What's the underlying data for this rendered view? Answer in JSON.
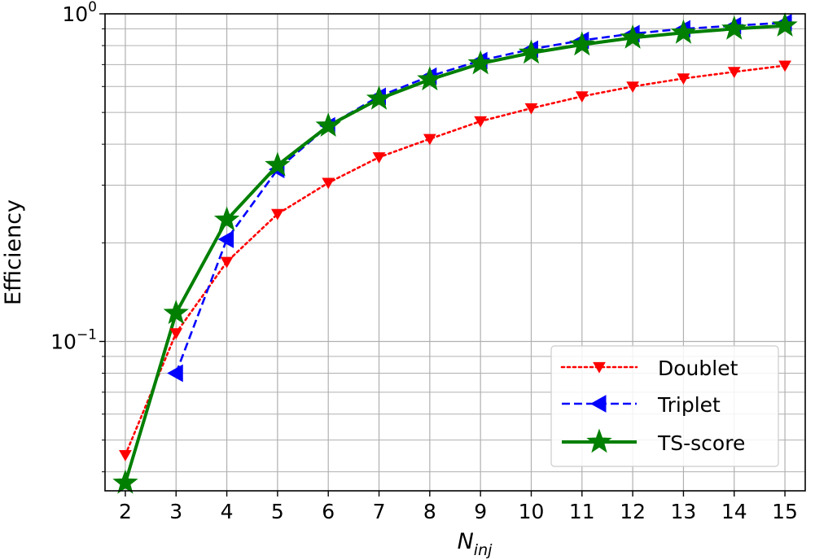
{
  "chart_data": {
    "type": "line",
    "title": "",
    "xlabel": "N",
    "xlabel_sub": "inj",
    "ylabel": "Efficiency",
    "yscale": "log",
    "ylim": [
      0.035,
      1.0
    ],
    "xlim": [
      1.6,
      15.4
    ],
    "grid": true,
    "legend_position": "lower-right",
    "y_major_ticks": [
      {
        "value": 0.1,
        "base": "10",
        "exp": "−1"
      },
      {
        "value": 1.0,
        "base": "10",
        "exp": "0"
      }
    ],
    "x": [
      2,
      3,
      4,
      5,
      6,
      7,
      8,
      9,
      10,
      11,
      12,
      13,
      14,
      15
    ],
    "x_tick_labels": [
      "2",
      "3",
      "4",
      "5",
      "6",
      "7",
      "8",
      "9",
      "10",
      "11",
      "12",
      "13",
      "14",
      "15"
    ],
    "series": [
      {
        "name": "Doublet",
        "color": "#ff0000",
        "line_style": "dotted",
        "marker": "triangle-down",
        "values": [
          0.045,
          0.106,
          0.175,
          0.245,
          0.305,
          0.365,
          0.415,
          0.47,
          0.515,
          0.56,
          0.6,
          0.635,
          0.665,
          0.695
        ]
      },
      {
        "name": "Triplet",
        "color": "#0000ff",
        "line_style": "dashed",
        "marker": "triangle-left",
        "values": [
          null,
          0.08,
          0.205,
          0.335,
          0.455,
          0.56,
          0.645,
          0.72,
          0.78,
          0.83,
          0.87,
          0.9,
          0.92,
          0.94
        ]
      },
      {
        "name": "TS-score",
        "color": "#007f00",
        "line_style": "solid",
        "marker": "star",
        "values": [
          0.037,
          0.122,
          0.235,
          0.345,
          0.455,
          0.55,
          0.63,
          0.705,
          0.76,
          0.805,
          0.845,
          0.875,
          0.9,
          0.92
        ]
      }
    ]
  }
}
